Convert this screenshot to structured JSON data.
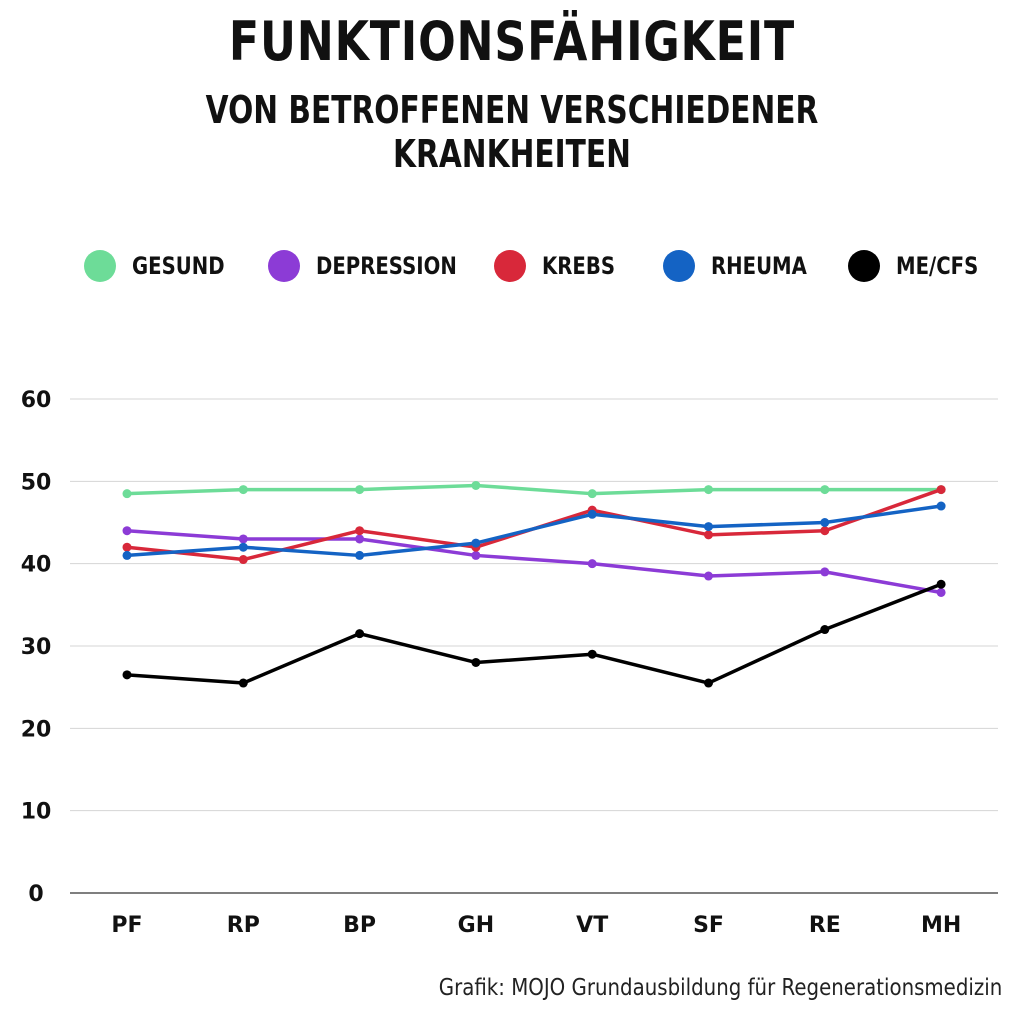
{
  "title": "FUNKTIONSFÄHIGKEIT",
  "subtitle": "VON BETROFFENEN VERSCHIEDENER KRANKHEITEN",
  "source": "Grafik: MOJO Grundausbildung für Regenerationsmedizin",
  "chart_data": {
    "type": "line",
    "title": "FUNKTIONSFÄHIGKEIT",
    "subtitle": "VON BETROFFENEN VERSCHIEDENER KRANKHEITEN",
    "xlabel": "",
    "ylabel": "",
    "categories": [
      "PF",
      "RP",
      "BP",
      "GH",
      "VT",
      "SF",
      "RE",
      "MH"
    ],
    "ylim": [
      0,
      60
    ],
    "yticks": [
      0,
      10,
      20,
      30,
      40,
      50,
      60
    ],
    "grid": true,
    "legend_position": "top",
    "series": [
      {
        "name": "GESUND",
        "color": "#6ddc98",
        "values": [
          48.5,
          49,
          49,
          49.5,
          48.5,
          49,
          49,
          49
        ]
      },
      {
        "name": "DEPRESSION",
        "color": "#8c3bd6",
        "values": [
          44,
          43,
          43,
          41,
          40,
          38.5,
          39,
          36.5
        ]
      },
      {
        "name": "KREBS",
        "color": "#d8283a",
        "values": [
          42,
          40.5,
          44,
          42,
          46.5,
          43.5,
          44,
          49
        ]
      },
      {
        "name": "RHEUMA",
        "color": "#1463c4",
        "values": [
          41,
          42,
          41,
          42.5,
          46,
          44.5,
          45,
          47
        ]
      },
      {
        "name": "ME/CFS",
        "color": "#000000",
        "values": [
          26.5,
          25.5,
          31.5,
          28,
          29,
          25.5,
          32,
          37.5
        ]
      }
    ]
  }
}
